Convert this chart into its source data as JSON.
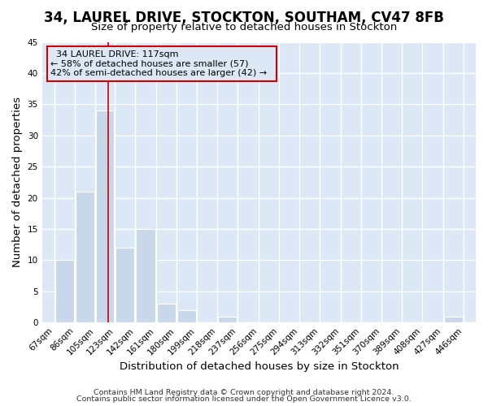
{
  "title": "34, LAUREL DRIVE, STOCKTON, SOUTHAM, CV47 8FB",
  "subtitle": "Size of property relative to detached houses in Stockton",
  "xlabel": "Distribution of detached houses by size in Stockton",
  "ylabel": "Number of detached properties",
  "footnote1": "Contains HM Land Registry data © Crown copyright and database right 2024.",
  "footnote2": "Contains public sector information licensed under the Open Government Licence v3.0.",
  "bar_edges": [
    67,
    86,
    105,
    123,
    142,
    161,
    180,
    199,
    218,
    237,
    256,
    275,
    294,
    313,
    332,
    351,
    370,
    389,
    408,
    427,
    446
  ],
  "bar_heights": [
    10,
    21,
    34,
    12,
    15,
    3,
    2,
    0,
    1,
    0,
    0,
    0,
    0,
    0,
    0,
    0,
    0,
    0,
    0,
    1,
    0
  ],
  "bar_color": "#c8d8ea",
  "bar_edgecolor": "#ffffff",
  "bar_linewidth": 0.8,
  "vline_x": 117,
  "vline_color": "#cc0000",
  "vline_linewidth": 1.2,
  "ylim": [
    0,
    45
  ],
  "yticks": [
    0,
    5,
    10,
    15,
    20,
    25,
    30,
    35,
    40,
    45
  ],
  "annotation_title": "34 LAUREL DRIVE: 117sqm",
  "annotation_line1": "← 58% of detached houses are smaller (57)",
  "annotation_line2": "42% of semi-detached houses are larger (42) →",
  "bg_color": "#ffffff",
  "axes_bg_color": "#dce8f5",
  "grid_color": "#ffffff",
  "tick_label_fontsize": 7.5,
  "axis_label_fontsize": 9.5,
  "title_fontsize": 12,
  "subtitle_fontsize": 9.5,
  "footnote_fontsize": 6.8
}
